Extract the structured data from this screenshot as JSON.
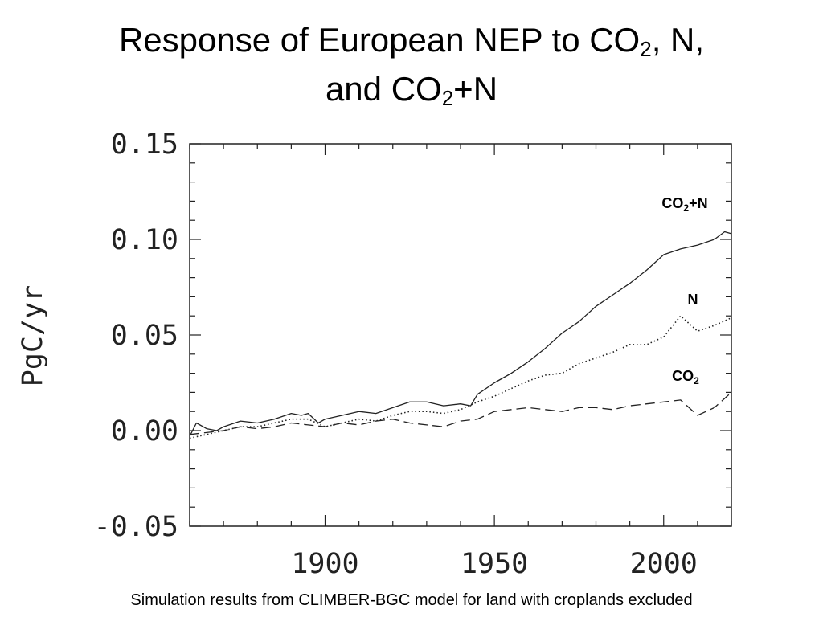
{
  "chart_data": {
    "type": "line",
    "title_parts": [
      "Response of European NEP to CO",
      "2",
      ", N,",
      "and CO",
      "2",
      "+N"
    ],
    "ylabel": "PgC/yr",
    "xlabel": "",
    "xlim": [
      1860,
      2020
    ],
    "ylim": [
      -0.05,
      0.15
    ],
    "x_ticks": [
      1900,
      1950,
      2000
    ],
    "x_tick_labels": [
      "1900",
      "1950",
      "2000"
    ],
    "y_ticks": [
      -0.05,
      0.0,
      0.05,
      0.1,
      0.15
    ],
    "y_tick_labels": [
      "-0.05",
      "0.00",
      "0.05",
      "0.10",
      "0.15"
    ],
    "grid": false,
    "legend": "inline",
    "series": [
      {
        "label_parts": [
          "CO",
          "2",
          "+N"
        ],
        "style": "solid",
        "x": [
          1860,
          1862,
          1865,
          1868,
          1870,
          1875,
          1880,
          1885,
          1890,
          1893,
          1895,
          1898,
          1900,
          1905,
          1910,
          1915,
          1920,
          1925,
          1930,
          1935,
          1940,
          1943,
          1945,
          1950,
          1955,
          1960,
          1965,
          1970,
          1975,
          1980,
          1985,
          1990,
          1995,
          2000,
          2005,
          2010,
          2015,
          2018,
          2020
        ],
        "y": [
          -0.003,
          0.004,
          0.001,
          0.0,
          0.002,
          0.005,
          0.004,
          0.006,
          0.009,
          0.008,
          0.009,
          0.004,
          0.006,
          0.008,
          0.01,
          0.009,
          0.012,
          0.015,
          0.015,
          0.013,
          0.014,
          0.013,
          0.019,
          0.025,
          0.03,
          0.036,
          0.043,
          0.051,
          0.057,
          0.065,
          0.071,
          0.077,
          0.084,
          0.092,
          0.095,
          0.097,
          0.1,
          0.104,
          0.103
        ]
      },
      {
        "label_parts": [
          "N"
        ],
        "style": "dotted",
        "x": [
          1860,
          1865,
          1870,
          1875,
          1880,
          1885,
          1890,
          1895,
          1900,
          1905,
          1910,
          1915,
          1920,
          1925,
          1930,
          1935,
          1940,
          1945,
          1950,
          1955,
          1960,
          1965,
          1970,
          1975,
          1980,
          1985,
          1990,
          1995,
          2000,
          2005,
          2010,
          2015,
          2020
        ],
        "y": [
          -0.004,
          -0.002,
          0.0,
          0.002,
          0.002,
          0.004,
          0.006,
          0.006,
          0.002,
          0.004,
          0.006,
          0.005,
          0.008,
          0.01,
          0.01,
          0.009,
          0.011,
          0.015,
          0.018,
          0.022,
          0.026,
          0.029,
          0.03,
          0.035,
          0.038,
          0.041,
          0.045,
          0.045,
          0.049,
          0.06,
          0.052,
          0.055,
          0.059
        ]
      },
      {
        "label_parts": [
          "CO",
          "2"
        ],
        "style": "dashed",
        "x": [
          1860,
          1865,
          1870,
          1875,
          1880,
          1885,
          1890,
          1895,
          1900,
          1905,
          1910,
          1915,
          1920,
          1925,
          1930,
          1935,
          1940,
          1945,
          1950,
          1955,
          1960,
          1965,
          1970,
          1975,
          1980,
          1985,
          1990,
          1995,
          2000,
          2005,
          2010,
          2015,
          2020
        ],
        "y": [
          -0.002,
          -0.001,
          0.0,
          0.002,
          0.001,
          0.002,
          0.004,
          0.003,
          0.002,
          0.004,
          0.003,
          0.005,
          0.006,
          0.004,
          0.003,
          0.002,
          0.005,
          0.006,
          0.01,
          0.011,
          0.012,
          0.011,
          0.01,
          0.012,
          0.012,
          0.011,
          0.013,
          0.014,
          0.015,
          0.016,
          0.008,
          0.012,
          0.02
        ]
      }
    ]
  },
  "caption": "Simulation results from CLIMBER-BGC model for land with croplands excluded"
}
